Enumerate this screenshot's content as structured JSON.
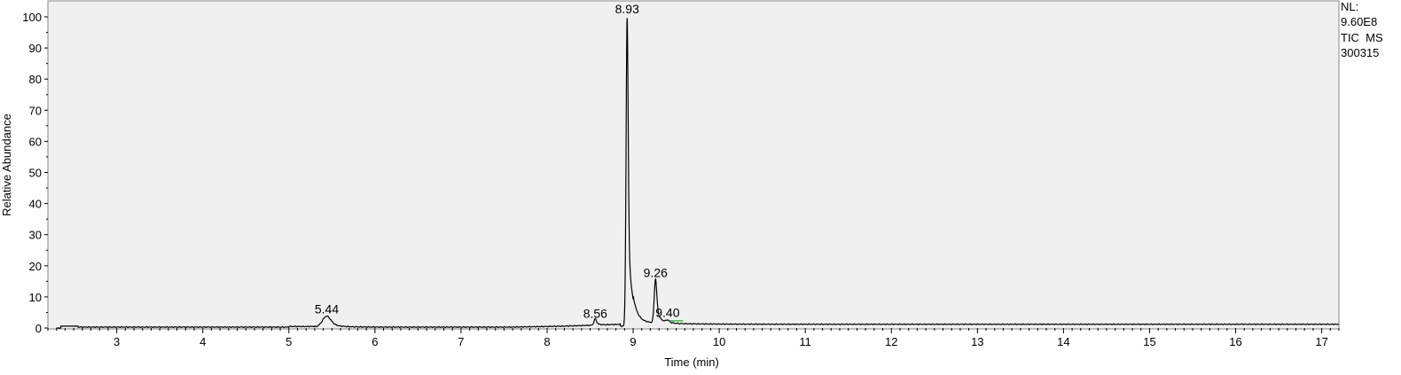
{
  "chart_data": {
    "type": "line",
    "xlabel": "Time (min)",
    "ylabel": "Relative Abundance",
    "xlim": [
      2.2,
      17.2
    ],
    "ylim": [
      0,
      100
    ],
    "x_ticks": [
      3,
      4,
      5,
      6,
      7,
      8,
      9,
      10,
      11,
      12,
      13,
      14,
      15,
      16,
      17
    ],
    "y_ticks": [
      0,
      10,
      20,
      30,
      40,
      50,
      60,
      70,
      80,
      90,
      100
    ],
    "grid": false,
    "plot_background": "#f0f0f0",
    "line_color": "#000000",
    "info": [
      "NL:",
      "9.60E8",
      "TIC  MS",
      "300315"
    ],
    "peaks": [
      {
        "label": "5.44",
        "rt": 5.44,
        "height": 3.5,
        "width": 0.05,
        "tail": 0.12
      },
      {
        "label": "8.56",
        "rt": 8.56,
        "height": 2.0,
        "width": 0.015,
        "tail": 0.04
      },
      {
        "label": "8.93",
        "rt": 8.93,
        "height": 99.0,
        "width": 0.012,
        "tail": 0.05
      },
      {
        "label": "9.26",
        "rt": 9.26,
        "height": 14.0,
        "width": 0.015,
        "tail": 0.05
      },
      {
        "label": "9.40",
        "rt": 9.4,
        "height": 0.8,
        "width": 0.02,
        "tail": 0.05
      }
    ],
    "label_heights": {
      "5.44": 3.5,
      "8.56": 2.2,
      "8.93": 100,
      "9.26": 15.2,
      "9.40": 2.4
    },
    "highlight_segment": {
      "x": [
        9.42,
        9.58
      ],
      "y": 2.3,
      "color": "#3cb043"
    }
  }
}
